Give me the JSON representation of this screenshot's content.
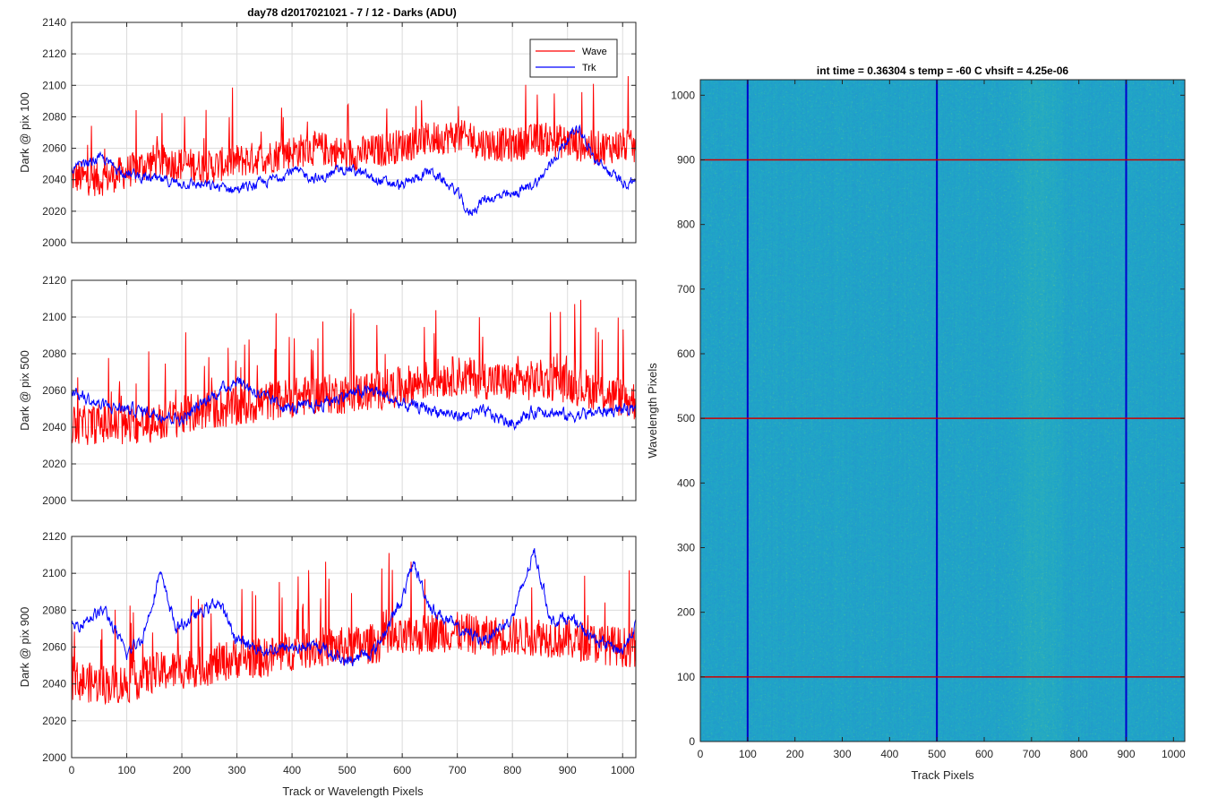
{
  "figure": {
    "suptitle": "day78 d2017021021 - 7 / 12 - Darks (ADU)",
    "xlabel": "Track or Wavelength Pixels"
  },
  "chart_data": [
    {
      "type": "line",
      "ylabel": "Dark @ pix 100",
      "xlim": [
        0,
        1024
      ],
      "ylim": [
        2000,
        2140
      ],
      "xticks": [
        0,
        100,
        200,
        300,
        400,
        500,
        600,
        700,
        800,
        900,
        1000
      ],
      "yticks": [
        2000,
        2020,
        2040,
        2060,
        2080,
        2100,
        2120,
        2140
      ],
      "grid": true,
      "legend": {
        "position": "top-right",
        "entries": [
          "Wave",
          "Trk"
        ]
      },
      "series": [
        {
          "name": "Wave",
          "color": "#ff0000",
          "x": [
            0,
            50,
            100,
            150,
            200,
            250,
            300,
            350,
            400,
            450,
            500,
            550,
            600,
            650,
            700,
            750,
            800,
            850,
            900,
            950,
            1000,
            1024
          ],
          "y": [
            2042,
            2040,
            2045,
            2052,
            2050,
            2048,
            2052,
            2054,
            2058,
            2060,
            2056,
            2058,
            2062,
            2066,
            2068,
            2063,
            2062,
            2066,
            2064,
            2060,
            2062,
            2060
          ]
        },
        {
          "name": "Trk",
          "color": "#0000ff",
          "x": [
            0,
            50,
            100,
            150,
            200,
            250,
            300,
            350,
            400,
            450,
            500,
            550,
            600,
            650,
            700,
            720,
            750,
            800,
            850,
            900,
            920,
            950,
            1000,
            1024
          ],
          "y": [
            2046,
            2054,
            2044,
            2040,
            2038,
            2036,
            2034,
            2038,
            2046,
            2040,
            2048,
            2040,
            2036,
            2046,
            2032,
            2018,
            2028,
            2030,
            2040,
            2066,
            2074,
            2052,
            2038,
            2040
          ]
        }
      ]
    },
    {
      "type": "line",
      "ylabel": "Dark @ pix 500",
      "xlim": [
        0,
        1024
      ],
      "ylim": [
        2000,
        2120
      ],
      "xticks": [
        0,
        100,
        200,
        300,
        400,
        500,
        600,
        700,
        800,
        900,
        1000
      ],
      "yticks": [
        2000,
        2020,
        2040,
        2060,
        2080,
        2100,
        2120
      ],
      "grid": true,
      "series": [
        {
          "name": "Wave",
          "color": "#ff0000",
          "x": [
            0,
            50,
            100,
            150,
            200,
            250,
            300,
            350,
            400,
            450,
            500,
            550,
            600,
            650,
            700,
            750,
            800,
            850,
            900,
            950,
            1000,
            1024
          ],
          "y": [
            2040,
            2042,
            2040,
            2042,
            2046,
            2050,
            2050,
            2054,
            2056,
            2058,
            2058,
            2060,
            2062,
            2066,
            2068,
            2066,
            2064,
            2066,
            2064,
            2060,
            2056,
            2054
          ]
        },
        {
          "name": "Trk",
          "color": "#0000ff",
          "x": [
            0,
            50,
            100,
            150,
            200,
            250,
            300,
            350,
            400,
            450,
            500,
            550,
            600,
            650,
            700,
            750,
            800,
            850,
            900,
            950,
            1000,
            1024
          ],
          "y": [
            2060,
            2052,
            2050,
            2048,
            2044,
            2056,
            2066,
            2056,
            2050,
            2052,
            2058,
            2060,
            2052,
            2050,
            2046,
            2048,
            2042,
            2050,
            2046,
            2048,
            2050,
            2048
          ]
        }
      ]
    },
    {
      "type": "line",
      "ylabel": "Dark @ pix 900",
      "xlim": [
        0,
        1024
      ],
      "ylim": [
        2000,
        2120
      ],
      "xticks": [
        0,
        100,
        200,
        300,
        400,
        500,
        600,
        700,
        800,
        900,
        1000
      ],
      "yticks": [
        2000,
        2020,
        2040,
        2060,
        2080,
        2100,
        2120
      ],
      "grid": true,
      "series": [
        {
          "name": "Wave",
          "color": "#ff0000",
          "x": [
            0,
            50,
            100,
            150,
            200,
            250,
            300,
            350,
            400,
            450,
            500,
            550,
            600,
            650,
            700,
            750,
            800,
            850,
            900,
            950,
            1000,
            1024
          ],
          "y": [
            2042,
            2040,
            2040,
            2046,
            2048,
            2050,
            2054,
            2054,
            2058,
            2060,
            2060,
            2062,
            2064,
            2068,
            2068,
            2066,
            2066,
            2066,
            2064,
            2062,
            2060,
            2060
          ]
        },
        {
          "name": "Trk",
          "color": "#0000ff",
          "x": [
            0,
            25,
            60,
            100,
            130,
            160,
            190,
            230,
            265,
            300,
            350,
            400,
            450,
            500,
            550,
            600,
            620,
            650,
            700,
            750,
            800,
            840,
            870,
            900,
            950,
            1000,
            1024
          ],
          "y": [
            2070,
            2075,
            2080,
            2056,
            2066,
            2100,
            2070,
            2078,
            2085,
            2064,
            2058,
            2060,
            2060,
            2052,
            2058,
            2086,
            2106,
            2082,
            2070,
            2064,
            2076,
            2112,
            2074,
            2076,
            2064,
            2058,
            2072
          ]
        }
      ]
    },
    {
      "type": "heatmap",
      "title": "int time = 0.36304 s    temp = -60 C    vhsift = 4.25e-06",
      "xlabel": "Track Pixels",
      "ylabel": "Wavelength Pixels",
      "xlim": [
        0,
        1024
      ],
      "ylim": [
        0,
        1024
      ],
      "xticks": [
        0,
        100,
        200,
        300,
        400,
        500,
        600,
        700,
        800,
        900,
        1000
      ],
      "yticks": [
        0,
        100,
        200,
        300,
        400,
        500,
        600,
        700,
        800,
        900,
        1000
      ],
      "colormap": [
        "#2a7fd4",
        "#1fa5c8",
        "#3cbaaa",
        "#9fcd6a"
      ],
      "brighter_columns": [
        650,
        780
      ],
      "vertical_lines": {
        "color": "#0000cc",
        "x": [
          100,
          500,
          900
        ]
      },
      "horizontal_lines": {
        "color": "#cc0000",
        "y": [
          100,
          500,
          900
        ]
      }
    }
  ]
}
